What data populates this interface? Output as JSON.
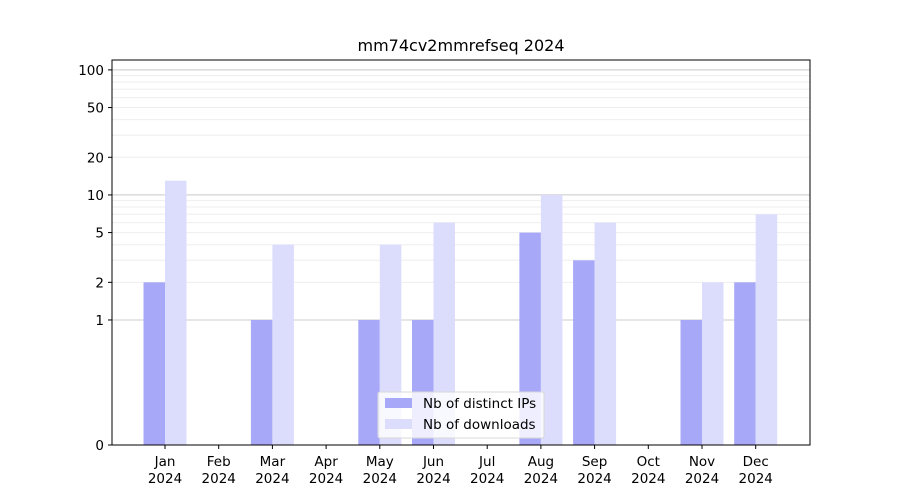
{
  "chart_data": {
    "type": "bar",
    "title": "mm74cv2mmrefseq 2024",
    "xlabel": "",
    "ylabel": "",
    "yscale": "symlog",
    "ylim": [
      0,
      120
    ],
    "yticks": [
      0,
      1,
      2,
      5,
      10,
      20,
      50,
      100
    ],
    "ytick_labels": [
      "0",
      "1",
      "2",
      "5",
      "10",
      "20",
      "50",
      "100"
    ],
    "categories": [
      [
        "Jan",
        "2024"
      ],
      [
        "Feb",
        "2024"
      ],
      [
        "Mar",
        "2024"
      ],
      [
        "Apr",
        "2024"
      ],
      [
        "May",
        "2024"
      ],
      [
        "Jun",
        "2024"
      ],
      [
        "Jul",
        "2024"
      ],
      [
        "Aug",
        "2024"
      ],
      [
        "Sep",
        "2024"
      ],
      [
        "Oct",
        "2024"
      ],
      [
        "Nov",
        "2024"
      ],
      [
        "Dec",
        "2024"
      ]
    ],
    "series": [
      {
        "name": "Nb of distinct IPs",
        "color": "#a8a8f8",
        "values": [
          2,
          0,
          1,
          0,
          1,
          1,
          0,
          5,
          3,
          0,
          1,
          2
        ]
      },
      {
        "name": "Nb of downloads",
        "color": "#dcdcfc",
        "values": [
          13,
          0,
          4,
          0,
          4,
          6,
          0,
          10,
          6,
          0,
          2,
          7
        ]
      }
    ],
    "grid": true,
    "legend": "lower-center"
  }
}
